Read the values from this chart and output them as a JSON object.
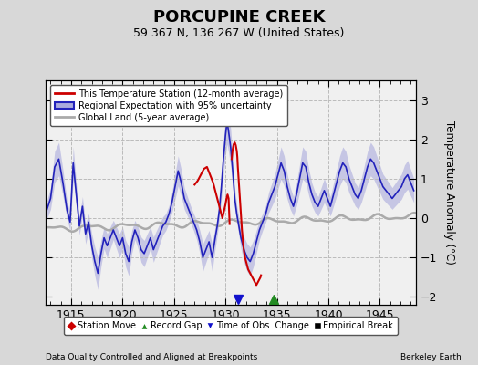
{
  "title": "PORCUPINE CREEK",
  "subtitle": "59.367 N, 136.267 W (United States)",
  "ylabel": "Temperature Anomaly (°C)",
  "xlabel_bottom": "Data Quality Controlled and Aligned at Breakpoints",
  "xlabel_right": "Berkeley Earth",
  "xlim": [
    1912.5,
    1948.5
  ],
  "ylim": [
    -2.2,
    3.5
  ],
  "yticks": [
    -2,
    -1,
    0,
    1,
    2,
    3
  ],
  "xticks": [
    1915,
    1920,
    1925,
    1930,
    1935,
    1940,
    1945
  ],
  "bg_color": "#d8d8d8",
  "plot_bg_color": "#f0f0f0",
  "regional_color": "#2222bb",
  "regional_fill_color": "#aaaadd",
  "station_color": "#cc0000",
  "global_color": "#aaaaaa",
  "grid_color": "#bbbbbb",
  "record_gap_marker_x": 1934.7,
  "record_gap_marker_y": -2.05,
  "time_obs_marker_x": 1931.2,
  "time_obs_marker_y": -2.05
}
